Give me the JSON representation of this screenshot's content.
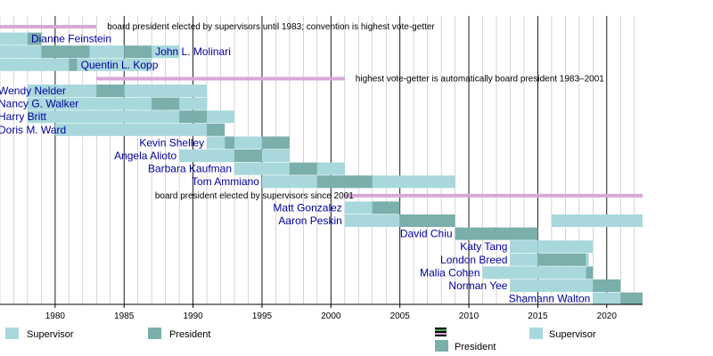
{
  "chart_data": {
    "type": "timeline",
    "x_axis": {
      "range": [
        1976,
        2022.6
      ],
      "ticks": [
        1980,
        1985,
        1990,
        1995,
        2000,
        2005,
        2010,
        2015,
        2020
      ]
    },
    "legend": [
      "Supervisor",
      "President",
      "Supervisor",
      "President"
    ],
    "colors": {
      "supervisor": "#a8d8dc",
      "president": "#7aafab",
      "era_bar": "#d8a8d8",
      "name": "#0000a0",
      "grid": "#000000"
    },
    "eras": [
      {
        "label": "board president elected by supervisors until 1983; convention is highest vote-getter",
        "start": 1976,
        "end": 1983
      },
      {
        "label": "highest vote-getter is automatically board president 1983–2001",
        "start": 1983,
        "end": 2001
      },
      {
        "label": "board president elected by supervisors since 2001",
        "start": 2001,
        "end": 2022.6
      }
    ],
    "members": [
      {
        "name": "Dianne Feinstein",
        "align": "right",
        "terms": [
          {
            "type": "supervisor",
            "start": 1976,
            "end": 1978
          },
          {
            "type": "president",
            "start": 1978,
            "end": 1979
          }
        ]
      },
      {
        "name": "John L. Molinari",
        "align": "right",
        "terms": [
          {
            "type": "supervisor",
            "start": 1976,
            "end": 1979
          },
          {
            "type": "president",
            "start": 1979,
            "end": 1982.5
          },
          {
            "type": "supervisor",
            "start": 1982.5,
            "end": 1985
          },
          {
            "type": "president",
            "start": 1985,
            "end": 1987
          },
          {
            "type": "supervisor",
            "start": 1987,
            "end": 1989
          }
        ]
      },
      {
        "name": "Quentin L. Kopp",
        "align": "right",
        "terms": [
          {
            "type": "supervisor",
            "start": 1976,
            "end": 1977
          },
          {
            "type": "supervisor",
            "start": 1977,
            "end": 1979
          },
          {
            "type": "supervisor",
            "start": 1979,
            "end": 1981
          },
          {
            "type": "president",
            "start": 1981,
            "end": 1981.6
          },
          {
            "type": "supervisor",
            "start": 1981.6,
            "end": 1987
          }
        ]
      },
      {
        "name": "Wendy Nelder",
        "align": "left",
        "terms": [
          {
            "type": "supervisor",
            "start": 1978,
            "end": 1983
          },
          {
            "type": "president",
            "start": 1983,
            "end": 1985
          },
          {
            "type": "supervisor",
            "start": 1985,
            "end": 1991
          }
        ]
      },
      {
        "name": "Nancy G. Walker",
        "align": "left",
        "terms": [
          {
            "type": "supervisor",
            "start": 1978,
            "end": 1987
          },
          {
            "type": "president",
            "start": 1987,
            "end": 1989
          },
          {
            "type": "supervisor",
            "start": 1989,
            "end": 1991
          }
        ]
      },
      {
        "name": "Harry Britt",
        "align": "left",
        "terms": [
          {
            "type": "supervisor",
            "start": 1978,
            "end": 1989
          },
          {
            "type": "president",
            "start": 1989,
            "end": 1991
          },
          {
            "type": "supervisor",
            "start": 1991,
            "end": 1993
          }
        ]
      },
      {
        "name": "Doris M. Ward",
        "align": "left",
        "terms": [
          {
            "type": "supervisor",
            "start": 1980,
            "end": 1991
          },
          {
            "type": "president",
            "start": 1991,
            "end": 1992.3
          }
        ]
      },
      {
        "name": "Kevin Shelley",
        "align": "right",
        "terms": [
          {
            "type": "supervisor",
            "start": 1991,
            "end": 1992.3
          },
          {
            "type": "president",
            "start": 1992.3,
            "end": 1993
          },
          {
            "type": "supervisor",
            "start": 1993,
            "end": 1995
          },
          {
            "type": "president",
            "start": 1995,
            "end": 1997
          }
        ]
      },
      {
        "name": "Angela Alioto",
        "align": "right",
        "terms": [
          {
            "type": "supervisor",
            "start": 1989,
            "end": 1993
          },
          {
            "type": "president",
            "start": 1993,
            "end": 1995
          },
          {
            "type": "supervisor",
            "start": 1995,
            "end": 1997
          }
        ]
      },
      {
        "name": "Barbara Kaufman",
        "align": "right",
        "terms": [
          {
            "type": "supervisor",
            "start": 1993,
            "end": 1997
          },
          {
            "type": "president",
            "start": 1997,
            "end": 1999
          },
          {
            "type": "supervisor",
            "start": 1999,
            "end": 2001
          }
        ]
      },
      {
        "name": "Tom Ammiano",
        "align": "right",
        "terms": [
          {
            "type": "supervisor",
            "start": 1995,
            "end": 1999
          },
          {
            "type": "president",
            "start": 1999,
            "end": 2003
          },
          {
            "type": "supervisor",
            "start": 2003,
            "end": 2009
          }
        ]
      },
      {
        "name": "Matt Gonzalez",
        "align": "right",
        "terms": [
          {
            "type": "supervisor",
            "start": 2001,
            "end": 2003
          },
          {
            "type": "president",
            "start": 2003,
            "end": 2005
          }
        ]
      },
      {
        "name": "Aaron Peskin",
        "align": "right",
        "terms": [
          {
            "type": "supervisor",
            "start": 2001,
            "end": 2005
          },
          {
            "type": "president",
            "start": 2005,
            "end": 2009
          },
          {
            "type": "supervisor",
            "start": 2016,
            "end": 2022.6
          }
        ]
      },
      {
        "name": "David Chiu",
        "align": "right",
        "terms": [
          {
            "type": "president",
            "start": 2009,
            "end": 2015
          }
        ]
      },
      {
        "name": "Katy Tang",
        "align": "right",
        "terms": [
          {
            "type": "supervisor",
            "start": 2013,
            "end": 2015
          },
          {
            "type": "supervisor",
            "start": 2015,
            "end": 2019
          }
        ]
      },
      {
        "name": "London Breed",
        "align": "right",
        "terms": [
          {
            "type": "supervisor",
            "start": 2013,
            "end": 2015
          },
          {
            "type": "president",
            "start": 2015,
            "end": 2018.5
          },
          {
            "type": "supervisor",
            "start": 2018.5,
            "end": 2018.7
          }
        ]
      },
      {
        "name": "Malia Cohen",
        "align": "right",
        "terms": [
          {
            "type": "supervisor",
            "start": 2011,
            "end": 2018.5
          },
          {
            "type": "president",
            "start": 2018.5,
            "end": 2019
          }
        ]
      },
      {
        "name": "Norman Yee",
        "align": "right",
        "terms": [
          {
            "type": "supervisor",
            "start": 2013,
            "end": 2019
          },
          {
            "type": "president",
            "start": 2019,
            "end": 2021
          }
        ]
      },
      {
        "name": "Shamann Walton",
        "align": "right",
        "terms": [
          {
            "type": "supervisor",
            "start": 2019,
            "end": 2021
          },
          {
            "type": "president",
            "start": 2021,
            "end": 2022.6
          }
        ]
      }
    ]
  }
}
